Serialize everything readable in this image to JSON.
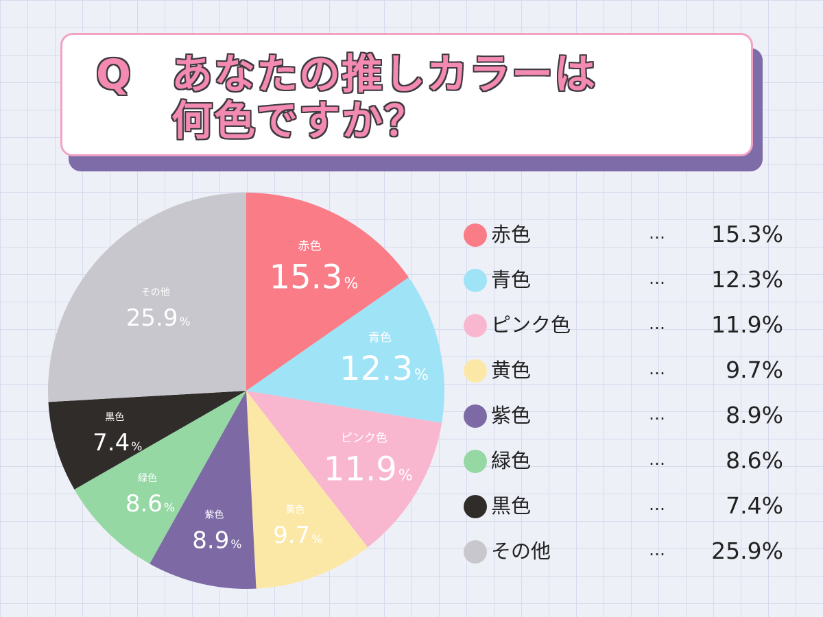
{
  "question": {
    "q": "Q",
    "line1": "あなたの推しカラーは",
    "line2": "何色ですか？"
  },
  "legend": {
    "separator": "…"
  },
  "chart_data": {
    "type": "pie",
    "unit": "%",
    "slices": [
      {
        "label": "赤色",
        "value": 15.3,
        "color": "#f97c87"
      },
      {
        "label": "青色",
        "value": 12.3,
        "color": "#9fe3f7"
      },
      {
        "label": "ピンク色",
        "value": 11.9,
        "color": "#f9b7cf"
      },
      {
        "label": "黄色",
        "value": 9.7,
        "color": "#fce8a6"
      },
      {
        "label": "紫色",
        "value": 8.9,
        "color": "#7d6aa5"
      },
      {
        "label": "緑色",
        "value": 8.6,
        "color": "#95d8a4"
      },
      {
        "label": "黒色",
        "value": 7.4,
        "color": "#2f2c2a"
      },
      {
        "label": "その他",
        "value": 25.9,
        "color": "#c8c7cd"
      }
    ]
  }
}
